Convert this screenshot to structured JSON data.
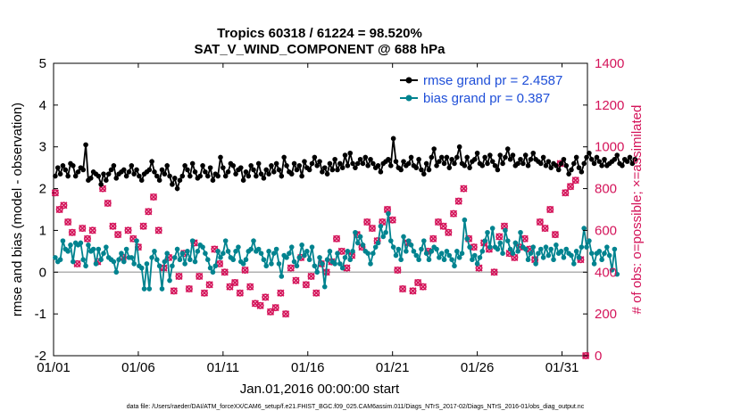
{
  "chart_data": {
    "type": "line",
    "title_line1": "Tropics 60318 / 61224 = 98.520%",
    "title_line2": "SAT_V_WIND_COMPONENT @ 688 hPa",
    "xlabel": "Jan.01,2016 00:00:00 start",
    "ylabel_left": "rmse and bias (model - observation)",
    "ylabel_right": "# of obs: o=possible; ×=assimilated",
    "x_ticks": [
      "01/01",
      "01/06",
      "01/11",
      "01/16",
      "01/21",
      "01/26",
      "01/31"
    ],
    "y_ticks_left": [
      "5",
      "4",
      "3",
      "2",
      "1",
      "0",
      "-1",
      "-2"
    ],
    "y_ticks_right": [
      "1400",
      "1200",
      "1000",
      "800",
      "600",
      "400",
      "200",
      "0"
    ],
    "ylim_left": [
      -2,
      5
    ],
    "ylim_right": [
      0,
      1400
    ],
    "xlim_days": [
      0,
      31.5
    ],
    "legend": {
      "rmse_label": "rmse grand pr = 2.4587",
      "bias_label": "bias grand pr = 0.387"
    },
    "colors": {
      "rmse": "#000000",
      "bias": "#00838f",
      "obs": "#d4145a",
      "legend_text": "#1f4fd8"
    },
    "series": [
      {
        "name": "rmse",
        "values": [
          2.3,
          2.5,
          2.35,
          2.55,
          2.45,
          2.3,
          2.6,
          2.55,
          2.3,
          2.4,
          2.5,
          2.45,
          3.05,
          2.2,
          2.25,
          2.4,
          2.35,
          2.3,
          2.1,
          2.35,
          2.2,
          2.35,
          2.45,
          2.55,
          2.25,
          2.35,
          2.4,
          2.45,
          2.3,
          2.4,
          2.55,
          2.35,
          2.45,
          2.3,
          2.2,
          2.35,
          2.4,
          2.45,
          2.65,
          2.4,
          2.3,
          2.2,
          2.45,
          2.35,
          2.55,
          2.3,
          2.1,
          2.25,
          2.0,
          2.2,
          2.3,
          2.55,
          2.45,
          2.3,
          2.6,
          2.4,
          2.25,
          2.3,
          2.55,
          2.4,
          2.3,
          2.5,
          2.2,
          2.35,
          2.3,
          2.75,
          2.5,
          2.3,
          2.4,
          2.6,
          2.55,
          2.35,
          2.45,
          2.5,
          2.2,
          2.4,
          2.3,
          2.55,
          2.45,
          2.3,
          2.6,
          2.35,
          2.25,
          2.45,
          2.35,
          2.55,
          2.4,
          2.6,
          2.45,
          2.3,
          2.75,
          2.55,
          2.4,
          2.35,
          2.6,
          2.45,
          2.55,
          2.3,
          2.65,
          2.5,
          2.45,
          2.6,
          2.75,
          2.55,
          2.65,
          2.4,
          2.5,
          2.35,
          2.6,
          2.45,
          2.7,
          2.45,
          2.6,
          2.5,
          2.8,
          2.55,
          2.85,
          2.6,
          2.5,
          2.6,
          2.7,
          2.6,
          2.75,
          2.55,
          2.7,
          2.6,
          2.5,
          2.55,
          2.4,
          2.6,
          2.65,
          2.7,
          2.55,
          3.2,
          2.65,
          2.5,
          2.45,
          2.65,
          2.55,
          2.6,
          2.75,
          2.55,
          2.5,
          2.7,
          2.45,
          2.35,
          2.6,
          2.45,
          2.75,
          2.95,
          2.55,
          2.65,
          2.75,
          2.6,
          2.75,
          2.5,
          2.7,
          2.6,
          2.75,
          3.0,
          2.6,
          2.55,
          2.75,
          2.5,
          2.65,
          2.7,
          2.85,
          2.6,
          2.55,
          2.75,
          2.6,
          2.8,
          2.65,
          2.55,
          2.45,
          2.8,
          2.6,
          2.75,
          2.95,
          2.7,
          2.8,
          2.55,
          2.6,
          2.7,
          2.6,
          2.8,
          2.55,
          2.7,
          2.85,
          2.7,
          2.65,
          2.6,
          2.75,
          2.55,
          2.65,
          2.5,
          2.6,
          2.55,
          2.45,
          2.6,
          2.7,
          2.55,
          2.35,
          2.45,
          2.6,
          2.75,
          2.5,
          2.4,
          2.6,
          2.75,
          2.85,
          2.7,
          2.6,
          2.75,
          2.65,
          2.55,
          2.7,
          2.55,
          2.6,
          2.65,
          2.7,
          2.8,
          2.6,
          2.55,
          2.7,
          2.65,
          2.75,
          2.6,
          2.7
        ],
        "x_step": 0.15
      },
      {
        "name": "bias",
        "values": [
          0.35,
          0.25,
          0.3,
          0.75,
          0.55,
          0.5,
          0.65,
          0.25,
          0.7,
          0.65,
          0.7,
          0.3,
          0.15,
          0.65,
          0.5,
          0.55,
          0.2,
          0.55,
          0.3,
          0.45,
          0.6,
          0.35,
          0.3,
          0.25,
          0.0,
          0.3,
          0.45,
          0.25,
          0.55,
          0.35,
          0.35,
          0.2,
          0.75,
          0.15,
          0.1,
          -0.4,
          0.2,
          -0.4,
          0.35,
          0.5,
          0.3,
          0.15,
          -0.4,
          0.25,
          0.45,
          -0.2,
          0.15,
          0.35,
          0.55,
          0.3,
          0.45,
          0.2,
          0.5,
          0.3,
          0.75,
          0.25,
          0.5,
          0.65,
          0.6,
          0.45,
          0.3,
          0.1,
          0.0,
          0.15,
          0.5,
          0.35,
          0.45,
          0.75,
          0.5,
          0.35,
          0.3,
          0.5,
          0.6,
          0.25,
          0.2,
          0.3,
          0.5,
          0.55,
          0.75,
          0.5,
          0.55,
          0.45,
          0.3,
          0.15,
          0.5,
          0.2,
          0.45,
          0.55,
          0.2,
          -0.1,
          0.4,
          0.35,
          0.45,
          0.6,
          0.25,
          0.15,
          0.35,
          0.65,
          0.4,
          0.5,
          0.3,
          0.6,
          0.15,
          0.0,
          0.35,
          0.2,
          -0.35,
          0.3,
          0.5,
          0.25,
          0.2,
          0.45,
          0.2,
          0.1,
          0.35,
          0.5,
          0.3,
          0.5,
          0.95,
          0.7,
          0.85,
          0.65,
          0.5,
          0.45,
          0.2,
          0.45,
          0.6,
          0.7,
          1.1,
          0.85,
          0.95,
          1.4,
          0.75,
          0.6,
          0.4,
          0.55,
          0.3,
          0.85,
          0.5,
          0.75,
          0.65,
          0.5,
          0.4,
          0.3,
          0.55,
          0.75,
          0.45,
          0.3,
          0.5,
          0.6,
          0.55,
          0.35,
          0.45,
          0.3,
          0.5,
          0.4,
          0.3,
          0.15,
          0.5,
          0.35,
          0.45,
          1.25,
          0.8,
          0.6,
          0.3,
          0.4,
          0.2,
          0.35,
          0.5,
          0.75,
          0.95,
          0.6,
          1.05,
          0.6,
          0.55,
          0.7,
          0.45,
          1.0,
          0.75,
          0.55,
          0.45,
          0.7,
          0.5,
          0.95,
          0.6,
          0.55,
          0.3,
          0.45,
          0.6,
          0.2,
          0.45,
          0.55,
          0.35,
          0.6,
          0.4,
          0.55,
          0.3,
          0.65,
          0.45,
          0.5,
          0.35,
          0.55,
          0.45,
          0.4,
          0.2,
          0.5,
          0.35,
          0.6,
          1.05,
          0.6,
          0.75,
          0.45,
          0.2,
          0.45,
          0.5,
          0.3,
          0.45,
          0.6,
          0.4,
          0.05,
          0.55,
          -0.05
        ],
        "x_step": 0.15
      },
      {
        "name": "obs_count",
        "x": [
          0.1,
          0.35,
          0.6,
          0.85,
          1.1,
          1.4,
          1.7,
          2.0,
          2.3,
          2.6,
          2.9,
          3.2,
          3.5,
          3.8,
          4.1,
          4.4,
          4.7,
          5.0,
          5.3,
          5.6,
          5.9,
          6.2,
          6.5,
          6.8,
          7.1,
          7.4,
          7.7,
          8.0,
          8.3,
          8.6,
          8.9,
          9.2,
          9.5,
          9.8,
          10.1,
          10.4,
          10.7,
          11.0,
          11.3,
          11.6,
          11.9,
          12.2,
          12.5,
          12.8,
          13.1,
          13.4,
          13.7,
          14.0,
          14.3,
          14.6,
          14.9,
          15.2,
          15.5,
          15.8,
          16.1,
          16.4,
          16.7,
          17.0,
          17.3,
          17.6,
          17.9,
          18.2,
          18.5,
          18.8,
          19.1,
          19.4,
          19.7,
          20.0,
          20.3,
          20.6,
          20.9,
          21.2,
          21.5,
          21.8,
          22.1,
          22.4,
          22.7,
          23.0,
          23.3,
          23.6,
          23.9,
          24.2,
          24.5,
          24.8,
          25.1,
          25.4,
          25.7,
          26.0,
          26.3,
          26.6,
          26.9,
          27.2,
          27.5,
          27.8,
          28.1,
          28.4,
          28.7,
          29.0,
          29.3,
          29.6,
          29.9,
          30.2,
          30.5,
          30.8,
          31.1,
          31.4
        ],
        "values": [
          780,
          700,
          720,
          640,
          590,
          440,
          610,
          560,
          600,
          450,
          800,
          730,
          620,
          580,
          470,
          600,
          560,
          520,
          620,
          690,
          760,
          600,
          420,
          470,
          310,
          380,
          490,
          320,
          540,
          380,
          300,
          340,
          510,
          440,
          400,
          330,
          350,
          300,
          410,
          330,
          250,
          240,
          280,
          210,
          230,
          300,
          200,
          420,
          360,
          470,
          340,
          380,
          300,
          440,
          400,
          450,
          560,
          500,
          420,
          480,
          580,
          520,
          640,
          610,
          550,
          640,
          700,
          650,
          410,
          320,
          540,
          310,
          350,
          330,
          500,
          560,
          640,
          620,
          590,
          680,
          740,
          800,
          560,
          520,
          420,
          540,
          510,
          400,
          570,
          620,
          490,
          470,
          520,
          560,
          510,
          460,
          640,
          610,
          700,
          580,
          920,
          780,
          810,
          840,
          460,
          0
        ]
      }
    ],
    "footer_text": "data file: /Users/raeder/DAI/ATM_forceXX/CAM6_setup/f.e21.FHIST_BGC.f09_025.CAM6assim.011/Diags_NTrS_2017-02/Diags_NTrS_2016-01/obs_diag_output.nc"
  }
}
